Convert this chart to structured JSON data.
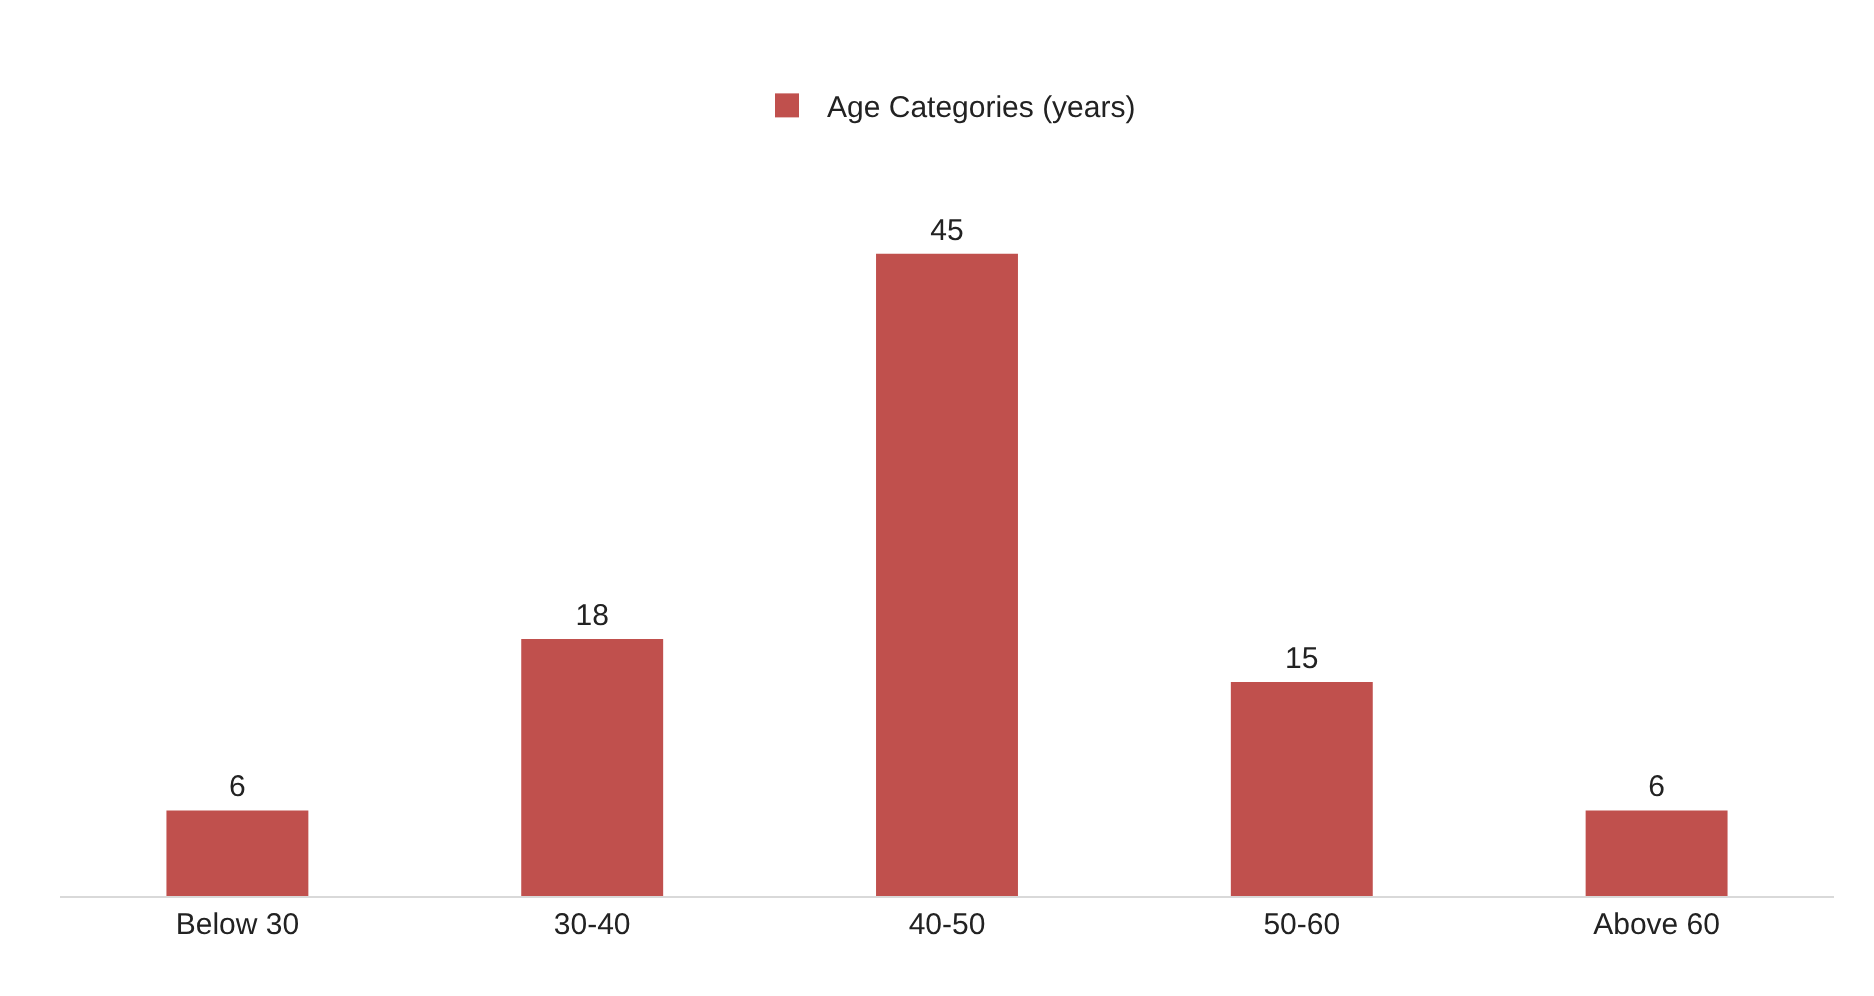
{
  "chart_data": {
    "type": "bar",
    "categories": [
      "Below 30",
      "30-40",
      "40-50",
      "50-60",
      "Above 60"
    ],
    "series": [
      {
        "name": "Age Categories (years)",
        "color": "#c0504d",
        "values": [
          6,
          18,
          45,
          15,
          6
        ]
      }
    ],
    "data_labels": true,
    "legend": "top"
  }
}
